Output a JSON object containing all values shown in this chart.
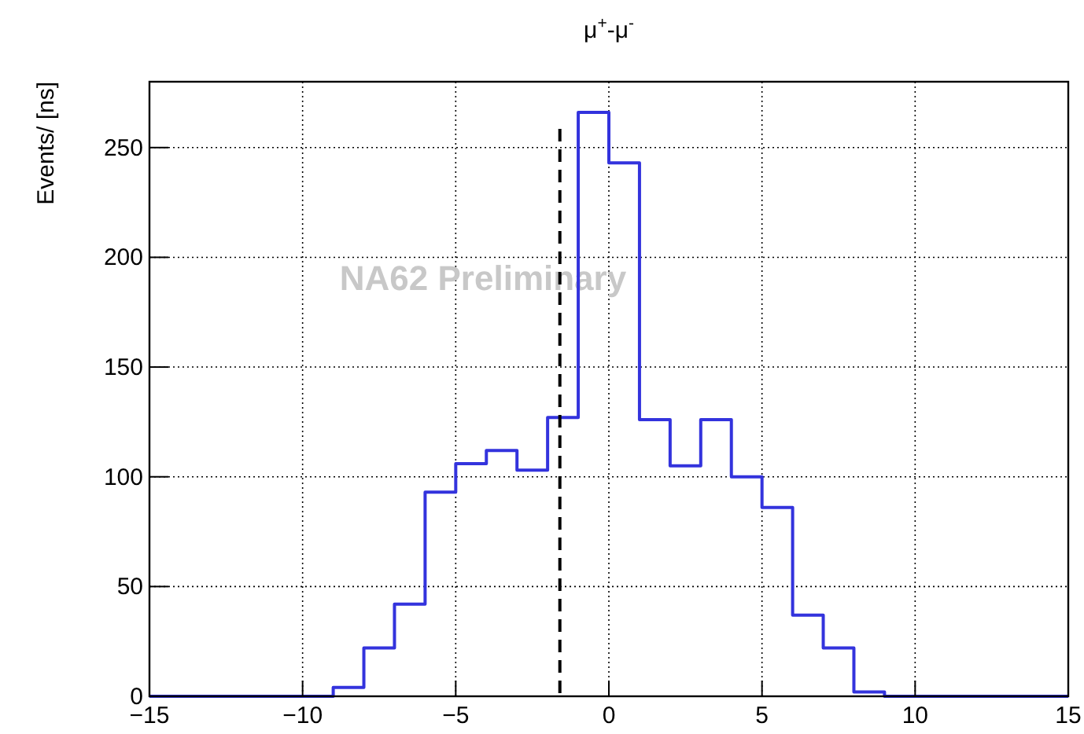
{
  "chart_data": {
    "type": "histogram",
    "title": "μ$^{+}$-μ$^{-}$",
    "ylabel": "Events/ [ns]",
    "bins": [
      -15,
      -14,
      -13,
      -12,
      -11,
      -10,
      -9,
      -8,
      -7,
      -6,
      -5,
      -4,
      -3,
      -2,
      -1,
      0,
      1,
      2,
      3,
      4,
      5,
      6,
      7,
      8,
      9,
      10,
      11,
      12,
      13,
      14,
      15
    ],
    "values": [
      0,
      0,
      0,
      0,
      0,
      0,
      4,
      22,
      42,
      93,
      106,
      112,
      103,
      127,
      266,
      243,
      126,
      105,
      126,
      100,
      86,
      37,
      22,
      2,
      0,
      0,
      0,
      0,
      0,
      0
    ],
    "color": "#3333dd",
    "xlim": [
      -15,
      15
    ],
    "xticks": [
      -15,
      -10,
      -5,
      0,
      5,
      10,
      15
    ],
    "ylim": [
      0,
      280
    ],
    "yticks": [
      0,
      50,
      100,
      150,
      200,
      250
    ],
    "grid": true,
    "ref_lines": [
      {
        "axis": "x",
        "value": -1.6,
        "color": "#000000",
        "line_style": "dashed"
      }
    ],
    "annotations": [
      "NA62 Preliminary"
    ]
  }
}
